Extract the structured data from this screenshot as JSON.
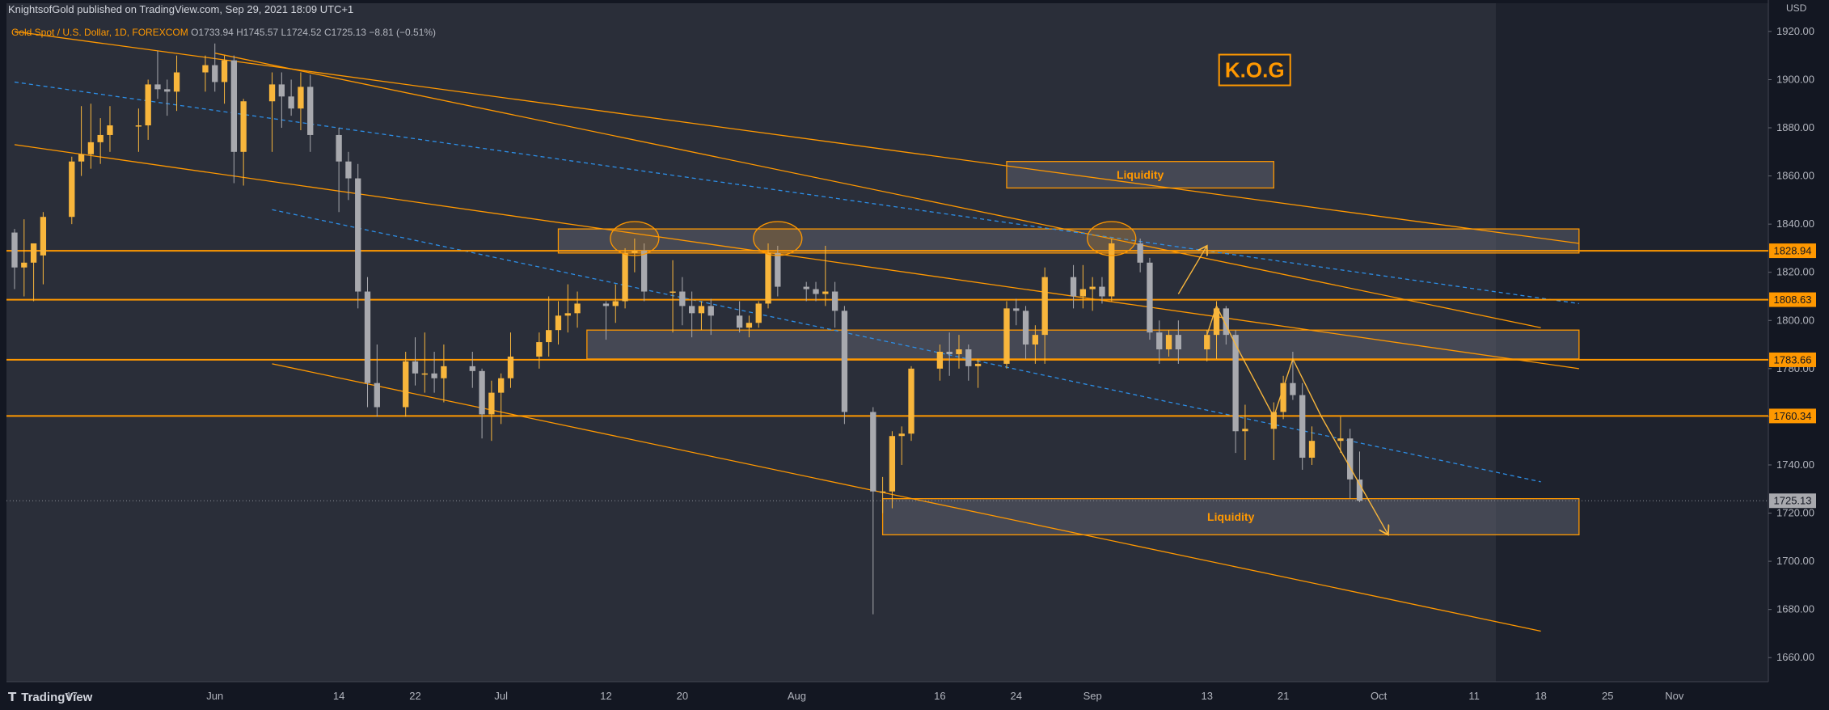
{
  "header": {
    "publisher_line": "KnightsofGold published on TradingView.com, Sep 29, 2021 18:09 UTC+1"
  },
  "footer": {
    "brand": "TradingView",
    "logo_icon": "tradingview-logo-icon"
  },
  "colors": {
    "bg": "#131722",
    "plot_bg": "#2a2e39",
    "orange": "#ff9800",
    "bull": "#f8b63c",
    "bear": "#a8a9ae",
    "blue_dash": "#2d8ee6",
    "zone_fill": "#5b5f6b"
  },
  "chart_data": {
    "type": "candlestick",
    "symbol_line": {
      "name": "Gold Spot / U.S. Dollar, 1D, FOREXCOM",
      "open": "O1733.94",
      "high": "H1745.57",
      "low": "L1724.52",
      "close": "C1725.13",
      "change": "−8.81 (−0.51%)"
    },
    "currency": "USD",
    "ylim": [
      1650,
      1925
    ],
    "y_ticks": [
      1920,
      1900,
      1880,
      1860,
      1840,
      1820,
      1800,
      1780,
      1760,
      1740,
      1720,
      1700,
      1680,
      1660
    ],
    "y_tick_labels": [
      "1920.00",
      "1900.00",
      "1880.00",
      "1860.00",
      "1840.00",
      "1820.00",
      "1800.00",
      "1780.00",
      "1760.00",
      "1740.00",
      "1720.00",
      "1700.00",
      "1680.00",
      "1660.00"
    ],
    "x_start": "2021-05-11",
    "x_end": "2021-11-10",
    "x_ticks": [
      {
        "date": "2021-05-17",
        "label": "17"
      },
      {
        "date": "2021-06-01",
        "label": "Jun"
      },
      {
        "date": "2021-06-14",
        "label": "14"
      },
      {
        "date": "2021-06-22",
        "label": "22"
      },
      {
        "date": "2021-07-01",
        "label": "Jul"
      },
      {
        "date": "2021-07-12",
        "label": "12"
      },
      {
        "date": "2021-07-20",
        "label": "20"
      },
      {
        "date": "2021-08-01",
        "label": "Aug"
      },
      {
        "date": "2021-08-16",
        "label": "16"
      },
      {
        "date": "2021-08-24",
        "label": "24"
      },
      {
        "date": "2021-09-01",
        "label": "Sep"
      },
      {
        "date": "2021-09-13",
        "label": "13"
      },
      {
        "date": "2021-09-21",
        "label": "21"
      },
      {
        "date": "2021-10-01",
        "label": "Oct"
      },
      {
        "date": "2021-10-11",
        "label": "11"
      },
      {
        "date": "2021-10-18",
        "label": "18"
      },
      {
        "date": "2021-10-25",
        "label": "25"
      },
      {
        "date": "2021-11-01",
        "label": "Nov"
      }
    ],
    "horizontal_levels": [
      {
        "value": 1828.94,
        "label": "1828.94"
      },
      {
        "value": 1808.63,
        "label": "1808.63"
      },
      {
        "value": 1783.66,
        "label": "1783.66"
      },
      {
        "value": 1760.34,
        "label": "1760.34"
      }
    ],
    "last_price": {
      "value": 1725.13,
      "label": "1725.13"
    },
    "zones": [
      {
        "label": "Liquidity",
        "from": "2021-08-23",
        "to": "2021-09-20",
        "low": 1855,
        "high": 1866
      },
      {
        "label": "",
        "from": "2021-07-07",
        "to": "2021-10-22",
        "low": 1828,
        "high": 1838
      },
      {
        "label": "",
        "from": "2021-07-10",
        "to": "2021-10-22",
        "low": 1784,
        "high": 1796
      },
      {
        "label": "Liquidity",
        "from": "2021-08-10",
        "to": "2021-10-22",
        "low": 1711,
        "high": 1726
      }
    ],
    "circles": [
      {
        "date": "2021-07-15",
        "value": 1834
      },
      {
        "date": "2021-07-30",
        "value": 1834
      },
      {
        "date": "2021-09-03",
        "value": 1834
      }
    ],
    "badge": {
      "text": "K.O.G",
      "date": "2021-09-18",
      "value": 1904
    },
    "trendlines": [
      {
        "style": "solid",
        "x1": "2021-05-11",
        "y1": 1920,
        "x2": "2021-10-22",
        "y2": 1832
      },
      {
        "style": "solid",
        "x1": "2021-06-01",
        "y1": 1911,
        "x2": "2021-10-18",
        "y2": 1797
      },
      {
        "style": "solid",
        "x1": "2021-05-11",
        "y1": 1873,
        "x2": "2021-10-22",
        "y2": 1780
      },
      {
        "style": "solid",
        "x1": "2021-06-07",
        "y1": 1782,
        "x2": "2021-10-18",
        "y2": 1671
      },
      {
        "style": "dashed",
        "x1": "2021-05-11",
        "y1": 1899,
        "x2": "2021-10-22",
        "y2": 1807
      },
      {
        "style": "dashed",
        "x1": "2021-06-07",
        "y1": 1846,
        "x2": "2021-10-18",
        "y2": 1733
      }
    ],
    "arrows": [
      {
        "points": [
          [
            "2021-09-10",
            1811
          ],
          [
            "2021-09-13",
            1831
          ]
        ]
      },
      {
        "points": [
          [
            "2021-09-13",
            1794
          ],
          [
            "2021-09-14",
            1806
          ],
          [
            "2021-09-16",
            1790
          ],
          [
            "2021-09-20",
            1760
          ],
          [
            "2021-09-22",
            1784
          ],
          [
            "2021-09-25",
            1760
          ],
          [
            "2021-10-02",
            1711
          ]
        ]
      }
    ],
    "candles": [
      {
        "d": "2021-05-11",
        "o": 1836.5,
        "h": 1838.0,
        "l": 1813.0,
        "c": 1822.0
      },
      {
        "d": "2021-05-12",
        "o": 1822.0,
        "h": 1842.0,
        "l": 1810.0,
        "c": 1824.0
      },
      {
        "d": "2021-05-13",
        "o": 1824.0,
        "h": 1832.0,
        "l": 1808.0,
        "c": 1832.0
      },
      {
        "d": "2021-05-14",
        "o": 1827.0,
        "h": 1845.0,
        "l": 1815.0,
        "c": 1843.0
      },
      {
        "d": "2021-05-17",
        "o": 1843.0,
        "h": 1868.0,
        "l": 1840.0,
        "c": 1866.0
      },
      {
        "d": "2021-05-18",
        "o": 1866.0,
        "h": 1889.0,
        "l": 1860.0,
        "c": 1869.0
      },
      {
        "d": "2021-05-19",
        "o": 1869.0,
        "h": 1890.0,
        "l": 1863.0,
        "c": 1874.0
      },
      {
        "d": "2021-05-20",
        "o": 1874.0,
        "h": 1884.0,
        "l": 1865.0,
        "c": 1877.0
      },
      {
        "d": "2021-05-21",
        "o": 1877.0,
        "h": 1889.0,
        "l": 1870.0,
        "c": 1881.0
      },
      {
        "d": "2021-05-24",
        "o": 1881.0,
        "h": 1888.0,
        "l": 1870.0,
        "c": 1881.0
      },
      {
        "d": "2021-05-25",
        "o": 1881.0,
        "h": 1900.0,
        "l": 1875.0,
        "c": 1898.0
      },
      {
        "d": "2021-05-26",
        "o": 1898.0,
        "h": 1912.0,
        "l": 1892.0,
        "c": 1896.0
      },
      {
        "d": "2021-05-27",
        "o": 1896.0,
        "h": 1900.0,
        "l": 1885.0,
        "c": 1895.0
      },
      {
        "d": "2021-05-28",
        "o": 1895.0,
        "h": 1910.0,
        "l": 1887.0,
        "c": 1903.0
      },
      {
        "d": "2021-05-31",
        "o": 1903.0,
        "h": 1910.0,
        "l": 1895.0,
        "c": 1906.0
      },
      {
        "d": "2021-06-01",
        "o": 1906.0,
        "h": 1915.0,
        "l": 1895.0,
        "c": 1899.0
      },
      {
        "d": "2021-06-02",
        "o": 1899.0,
        "h": 1910.0,
        "l": 1890.0,
        "c": 1908.0
      },
      {
        "d": "2021-06-03",
        "o": 1908.0,
        "h": 1910.0,
        "l": 1857.0,
        "c": 1870.0
      },
      {
        "d": "2021-06-04",
        "o": 1870.0,
        "h": 1892.0,
        "l": 1856.0,
        "c": 1891.0
      },
      {
        "d": "2021-06-07",
        "o": 1891.0,
        "h": 1903.0,
        "l": 1870.0,
        "c": 1898.0
      },
      {
        "d": "2021-06-08",
        "o": 1898.0,
        "h": 1903.0,
        "l": 1880.0,
        "c": 1893.0
      },
      {
        "d": "2021-06-09",
        "o": 1893.0,
        "h": 1900.0,
        "l": 1885.0,
        "c": 1888.0
      },
      {
        "d": "2021-06-10",
        "o": 1888.0,
        "h": 1903.0,
        "l": 1879.0,
        "c": 1897.0
      },
      {
        "d": "2021-06-11",
        "o": 1897.0,
        "h": 1902.0,
        "l": 1870.0,
        "c": 1877.0
      },
      {
        "d": "2021-06-14",
        "o": 1877.0,
        "h": 1880.0,
        "l": 1845.0,
        "c": 1866.0
      },
      {
        "d": "2021-06-15",
        "o": 1866.0,
        "h": 1870.0,
        "l": 1850.0,
        "c": 1859.0
      },
      {
        "d": "2021-06-16",
        "o": 1859.0,
        "h": 1865.0,
        "l": 1805.0,
        "c": 1812.0
      },
      {
        "d": "2021-06-17",
        "o": 1812.0,
        "h": 1818.0,
        "l": 1764.0,
        "c": 1774.0
      },
      {
        "d": "2021-06-18",
        "o": 1774.0,
        "h": 1790.0,
        "l": 1760.0,
        "c": 1764.0
      },
      {
        "d": "2021-06-21",
        "o": 1764.0,
        "h": 1787.0,
        "l": 1760.0,
        "c": 1783.0
      },
      {
        "d": "2021-06-22",
        "o": 1783.0,
        "h": 1793.0,
        "l": 1773.0,
        "c": 1778.0
      },
      {
        "d": "2021-06-23",
        "o": 1778.0,
        "h": 1795.0,
        "l": 1770.0,
        "c": 1778.0
      },
      {
        "d": "2021-06-24",
        "o": 1778.0,
        "h": 1787.0,
        "l": 1770.0,
        "c": 1776.0
      },
      {
        "d": "2021-06-25",
        "o": 1776.0,
        "h": 1790.0,
        "l": 1766.0,
        "c": 1781.0
      },
      {
        "d": "2021-06-28",
        "o": 1781.0,
        "h": 1787.0,
        "l": 1772.0,
        "c": 1779.0
      },
      {
        "d": "2021-06-29",
        "o": 1779.0,
        "h": 1780.0,
        "l": 1751.0,
        "c": 1761.0
      },
      {
        "d": "2021-06-30",
        "o": 1761.0,
        "h": 1775.0,
        "l": 1750.0,
        "c": 1770.0
      },
      {
        "d": "2021-07-01",
        "o": 1770.0,
        "h": 1778.0,
        "l": 1757.0,
        "c": 1776.0
      },
      {
        "d": "2021-07-02",
        "o": 1776.0,
        "h": 1795.0,
        "l": 1772.0,
        "c": 1785.0
      },
      {
        "d": "2021-07-05",
        "o": 1785.0,
        "h": 1795.0,
        "l": 1780.0,
        "c": 1791.0
      },
      {
        "d": "2021-07-06",
        "o": 1791.0,
        "h": 1810.0,
        "l": 1785.0,
        "c": 1796.0
      },
      {
        "d": "2021-07-07",
        "o": 1796.0,
        "h": 1808.0,
        "l": 1790.0,
        "c": 1802.0
      },
      {
        "d": "2021-07-08",
        "o": 1802.0,
        "h": 1815.0,
        "l": 1795.0,
        "c": 1803.0
      },
      {
        "d": "2021-07-09",
        "o": 1803.0,
        "h": 1812.0,
        "l": 1797.0,
        "c": 1807.0
      },
      {
        "d": "2021-07-12",
        "o": 1807.0,
        "h": 1808.0,
        "l": 1792.0,
        "c": 1806.0
      },
      {
        "d": "2021-07-13",
        "o": 1806.0,
        "h": 1815.0,
        "l": 1799.0,
        "c": 1808.0
      },
      {
        "d": "2021-07-14",
        "o": 1808.0,
        "h": 1830.0,
        "l": 1805.0,
        "c": 1828.0
      },
      {
        "d": "2021-07-15",
        "o": 1828.0,
        "h": 1834.0,
        "l": 1820.0,
        "c": 1829.0
      },
      {
        "d": "2021-07-16",
        "o": 1829.0,
        "h": 1832.0,
        "l": 1808.0,
        "c": 1812.0
      },
      {
        "d": "2021-07-19",
        "o": 1812.0,
        "h": 1825.0,
        "l": 1795.0,
        "c": 1812.0
      },
      {
        "d": "2021-07-20",
        "o": 1812.0,
        "h": 1818.0,
        "l": 1798.0,
        "c": 1806.0
      },
      {
        "d": "2021-07-21",
        "o": 1806.0,
        "h": 1812.0,
        "l": 1793.0,
        "c": 1803.0
      },
      {
        "d": "2021-07-22",
        "o": 1803.0,
        "h": 1808.0,
        "l": 1796.0,
        "c": 1806.0
      },
      {
        "d": "2021-07-23",
        "o": 1806.0,
        "h": 1809.0,
        "l": 1794.0,
        "c": 1802.0
      },
      {
        "d": "2021-07-26",
        "o": 1802.0,
        "h": 1808.0,
        "l": 1795.0,
        "c": 1797.0
      },
      {
        "d": "2021-07-27",
        "o": 1797.0,
        "h": 1802.0,
        "l": 1793.0,
        "c": 1799.0
      },
      {
        "d": "2021-07-28",
        "o": 1799.0,
        "h": 1808.0,
        "l": 1797.0,
        "c": 1807.0
      },
      {
        "d": "2021-07-29",
        "o": 1807.0,
        "h": 1832.0,
        "l": 1805.0,
        "c": 1828.0
      },
      {
        "d": "2021-07-30",
        "o": 1828.0,
        "h": 1831.0,
        "l": 1810.0,
        "c": 1814.0
      },
      {
        "d": "2021-08-02",
        "o": 1814.0,
        "h": 1816.0,
        "l": 1808.0,
        "c": 1813.0
      },
      {
        "d": "2021-08-03",
        "o": 1813.0,
        "h": 1816.0,
        "l": 1808.0,
        "c": 1811.0
      },
      {
        "d": "2021-08-04",
        "o": 1811.0,
        "h": 1831.0,
        "l": 1806.0,
        "c": 1812.0
      },
      {
        "d": "2021-08-05",
        "o": 1812.0,
        "h": 1816.0,
        "l": 1797.0,
        "c": 1804.0
      },
      {
        "d": "2021-08-06",
        "o": 1804.0,
        "h": 1806.0,
        "l": 1757.0,
        "c": 1762.0
      },
      {
        "d": "2021-08-09",
        "o": 1762.0,
        "h": 1764.0,
        "l": 1678.0,
        "c": 1729.0
      },
      {
        "d": "2021-08-10",
        "o": 1729.0,
        "h": 1735.0,
        "l": 1720.0,
        "c": 1729.0
      },
      {
        "d": "2021-08-11",
        "o": 1729.0,
        "h": 1754.0,
        "l": 1722.0,
        "c": 1752.0
      },
      {
        "d": "2021-08-12",
        "o": 1752.0,
        "h": 1756.0,
        "l": 1740.0,
        "c": 1753.0
      },
      {
        "d": "2021-08-13",
        "o": 1753.0,
        "h": 1781.0,
        "l": 1750.0,
        "c": 1780.0
      },
      {
        "d": "2021-08-16",
        "o": 1780.0,
        "h": 1790.0,
        "l": 1775.0,
        "c": 1787.0
      },
      {
        "d": "2021-08-17",
        "o": 1787.0,
        "h": 1795.0,
        "l": 1777.0,
        "c": 1786.0
      },
      {
        "d": "2021-08-18",
        "o": 1786.0,
        "h": 1794.0,
        "l": 1780.0,
        "c": 1788.0
      },
      {
        "d": "2021-08-19",
        "o": 1788.0,
        "h": 1790.0,
        "l": 1775.0,
        "c": 1781.0
      },
      {
        "d": "2021-08-20",
        "o": 1781.0,
        "h": 1784.0,
        "l": 1772.0,
        "c": 1782.0
      },
      {
        "d": "2021-08-23",
        "o": 1782.0,
        "h": 1808.0,
        "l": 1780.0,
        "c": 1805.0
      },
      {
        "d": "2021-08-24",
        "o": 1805.0,
        "h": 1809.0,
        "l": 1798.0,
        "c": 1804.0
      },
      {
        "d": "2021-08-25",
        "o": 1804.0,
        "h": 1806.0,
        "l": 1784.0,
        "c": 1790.0
      },
      {
        "d": "2021-08-26",
        "o": 1790.0,
        "h": 1798.0,
        "l": 1782.0,
        "c": 1794.0
      },
      {
        "d": "2021-08-27",
        "o": 1794.0,
        "h": 1822.0,
        "l": 1782.0,
        "c": 1818.0
      },
      {
        "d": "2021-08-30",
        "o": 1818.0,
        "h": 1823.0,
        "l": 1805.0,
        "c": 1810.0
      },
      {
        "d": "2021-08-31",
        "o": 1810.0,
        "h": 1823.0,
        "l": 1805.0,
        "c": 1813.0
      },
      {
        "d": "2021-09-01",
        "o": 1813.0,
        "h": 1818.0,
        "l": 1804.0,
        "c": 1814.0
      },
      {
        "d": "2021-09-02",
        "o": 1814.0,
        "h": 1818.0,
        "l": 1807.0,
        "c": 1810.0
      },
      {
        "d": "2021-09-03",
        "o": 1810.0,
        "h": 1834.0,
        "l": 1808.0,
        "c": 1832.0
      },
      {
        "d": "2021-09-06",
        "o": 1832.0,
        "h": 1834.0,
        "l": 1820.0,
        "c": 1824.0
      },
      {
        "d": "2021-09-07",
        "o": 1824.0,
        "h": 1826.0,
        "l": 1792.0,
        "c": 1795.0
      },
      {
        "d": "2021-09-08",
        "o": 1795.0,
        "h": 1800.0,
        "l": 1782.0,
        "c": 1788.0
      },
      {
        "d": "2021-09-09",
        "o": 1788.0,
        "h": 1796.0,
        "l": 1785.0,
        "c": 1794.0
      },
      {
        "d": "2021-09-10",
        "o": 1794.0,
        "h": 1800.0,
        "l": 1782.0,
        "c": 1788.0
      },
      {
        "d": "2021-09-13",
        "o": 1788.0,
        "h": 1796.0,
        "l": 1783.0,
        "c": 1794.0
      },
      {
        "d": "2021-09-14",
        "o": 1794.0,
        "h": 1808.0,
        "l": 1784.0,
        "c": 1805.0
      },
      {
        "d": "2021-09-15",
        "o": 1805.0,
        "h": 1806.0,
        "l": 1790.0,
        "c": 1794.0
      },
      {
        "d": "2021-09-16",
        "o": 1794.0,
        "h": 1796.0,
        "l": 1745.0,
        "c": 1754.0
      },
      {
        "d": "2021-09-17",
        "o": 1754.0,
        "h": 1765.0,
        "l": 1742.0,
        "c": 1755.0
      },
      {
        "d": "2021-09-20",
        "o": 1755.0,
        "h": 1766.0,
        "l": 1742.0,
        "c": 1762.0
      },
      {
        "d": "2021-09-21",
        "o": 1762.0,
        "h": 1777.0,
        "l": 1759.0,
        "c": 1774.0
      },
      {
        "d": "2021-09-22",
        "o": 1774.0,
        "h": 1787.0,
        "l": 1767.0,
        "c": 1769.0
      },
      {
        "d": "2021-09-23",
        "o": 1769.0,
        "h": 1774.0,
        "l": 1738.0,
        "c": 1743.0
      },
      {
        "d": "2021-09-24",
        "o": 1743.0,
        "h": 1756.0,
        "l": 1740.0,
        "c": 1750.0
      },
      {
        "d": "2021-09-27",
        "o": 1750.0,
        "h": 1760.0,
        "l": 1745.0,
        "c": 1751.0
      },
      {
        "d": "2021-09-28",
        "o": 1751.0,
        "h": 1755.0,
        "l": 1726.0,
        "c": 1734.0
      },
      {
        "d": "2021-09-29",
        "o": 1733.94,
        "h": 1745.57,
        "l": 1724.52,
        "c": 1725.13
      }
    ]
  }
}
